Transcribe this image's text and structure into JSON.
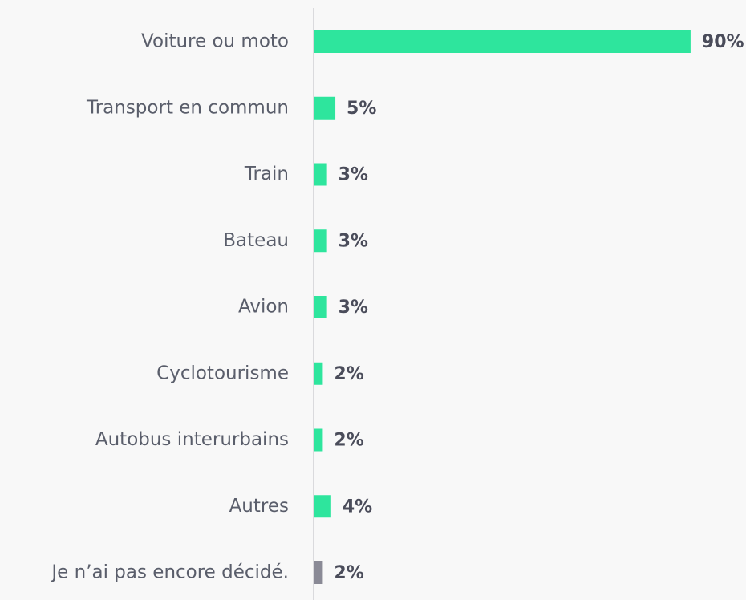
{
  "chart_data": {
    "type": "bar",
    "orientation": "horizontal",
    "categories": [
      "Voiture ou moto",
      "Transport en commun",
      "Train",
      "Bateau",
      "Avion",
      "Cyclotourisme",
      "Autobus interurbains",
      "Autres",
      "Je n’ai pas encore décidé."
    ],
    "values": [
      90,
      5,
      3,
      3,
      3,
      2,
      2,
      4,
      2
    ],
    "value_labels": [
      "90%",
      "5%",
      "3%",
      "3%",
      "3%",
      "2%",
      "2%",
      "4%",
      "2%"
    ],
    "colors": [
      "#2ee59d",
      "#2ee59d",
      "#2ee59d",
      "#2ee59d",
      "#2ee59d",
      "#2ee59d",
      "#2ee59d",
      "#2ee59d",
      "#8a8a96"
    ]
  }
}
